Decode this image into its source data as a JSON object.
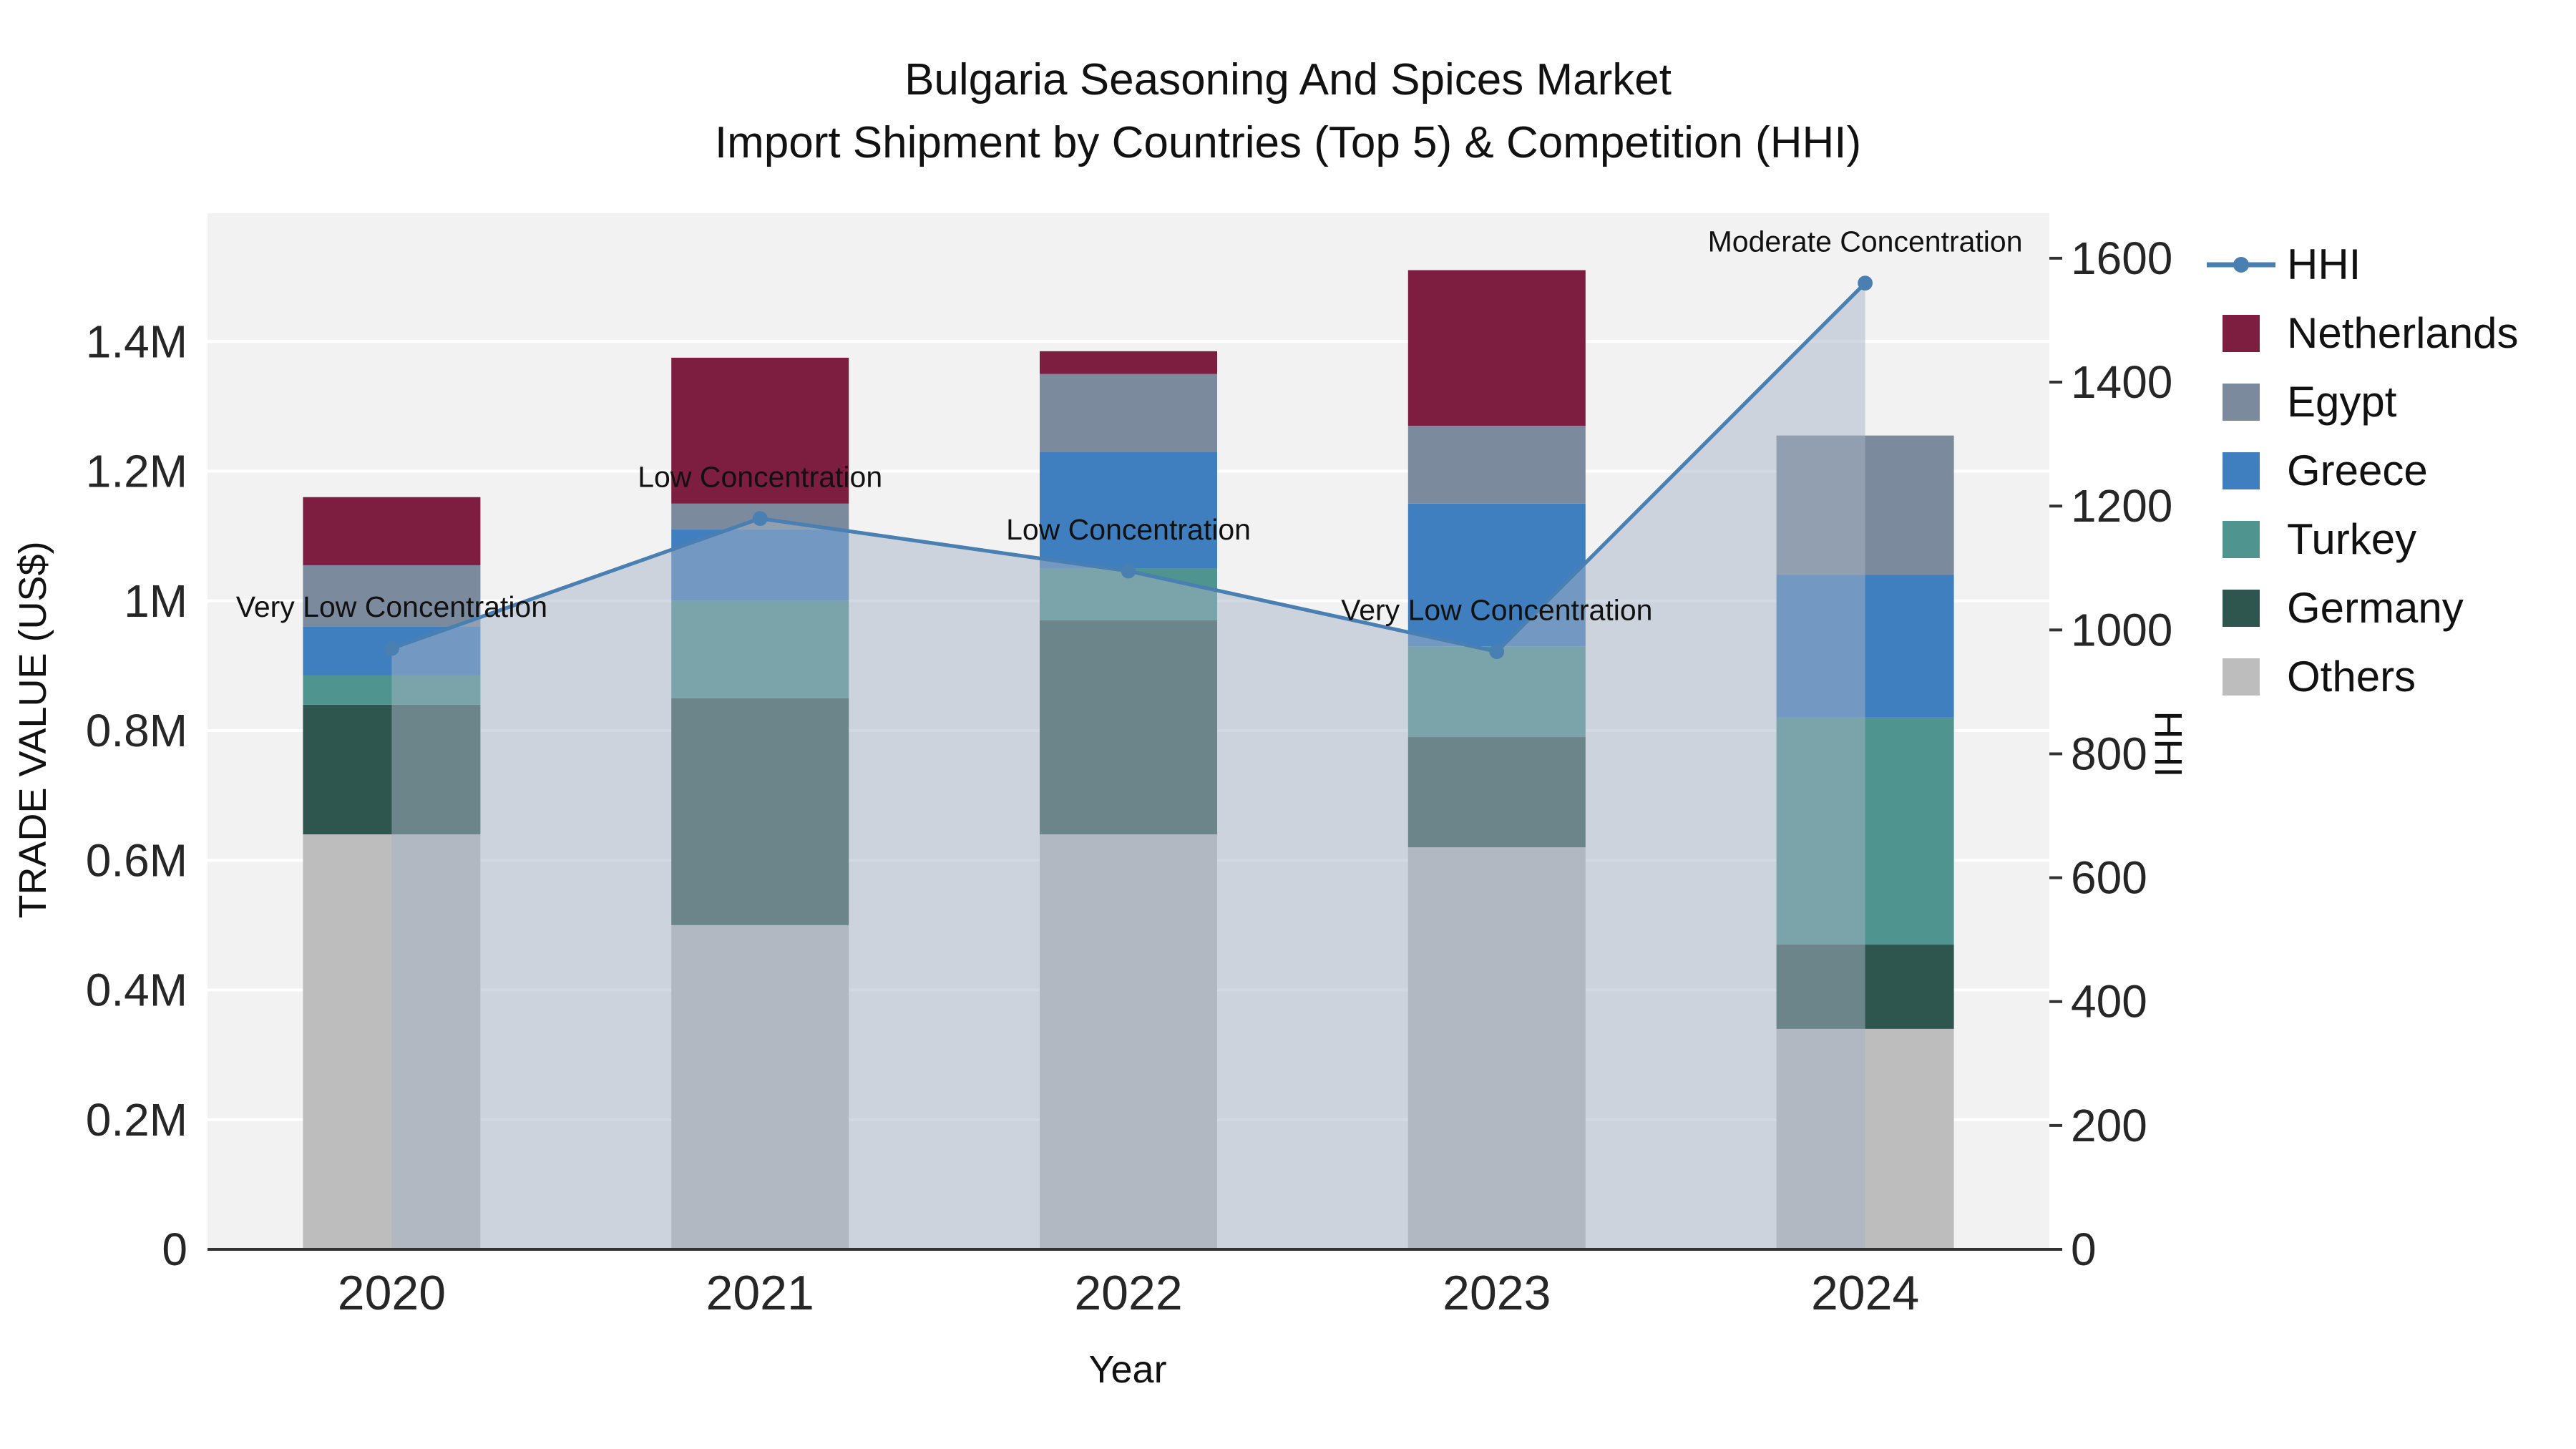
{
  "chart_data": {
    "type": "bar+line",
    "title_lines": [
      "Bulgaria Seasoning And Spices Market",
      "Import Shipment by Countries (Top 5) & Competition (HHI)"
    ],
    "xlabel": "Year",
    "ylabel_left": "TRADE VALUE (US$)",
    "ylabel_right": "HHI",
    "categories": [
      "2020",
      "2021",
      "2022",
      "2023",
      "2024"
    ],
    "bar_series": [
      {
        "name": "Others",
        "color": "#bdbdbd",
        "values": [
          640000,
          500000,
          640000,
          620000,
          340000
        ]
      },
      {
        "name": "Germany",
        "color": "#2e564f",
        "values": [
          200000,
          350000,
          330000,
          170000,
          130000
        ]
      },
      {
        "name": "Turkey",
        "color": "#4f948f",
        "values": [
          45000,
          150000,
          80000,
          140000,
          350000
        ]
      },
      {
        "name": "Greece",
        "color": "#3f7fbf",
        "values": [
          75000,
          110000,
          180000,
          220000,
          220000
        ]
      },
      {
        "name": "Egypt",
        "color": "#7b8b9d",
        "values": [
          95000,
          40000,
          120000,
          120000,
          215000
        ]
      },
      {
        "name": "Netherlands",
        "color": "#7d1d3f",
        "values": [
          105000,
          225000,
          35000,
          240000,
          0
        ]
      }
    ],
    "line_series": {
      "name": "HHI",
      "color": "#4a7fb2",
      "area_fill": "rgba(168,180,198,0.5)",
      "values": [
        970,
        1180,
        1095,
        965,
        1560
      ]
    },
    "annotations": [
      "Very Low Concentration",
      "Low Concentration",
      "Low Concentration",
      "Very Low Concentration",
      "Moderate Concentration"
    ],
    "yaxis_left": {
      "min": 0,
      "max": 1600000,
      "ticks": [
        {
          "value": 0,
          "label": "0"
        },
        {
          "value": 200000,
          "label": "0.2M"
        },
        {
          "value": 400000,
          "label": "0.4M"
        },
        {
          "value": 600000,
          "label": "0.6M"
        },
        {
          "value": 800000,
          "label": "0.8M"
        },
        {
          "value": 1000000,
          "label": "1M"
        },
        {
          "value": 1200000,
          "label": "1.2M"
        },
        {
          "value": 1400000,
          "label": "1.4M"
        },
        {
          "value": 1600000,
          "label": ""
        }
      ]
    },
    "yaxis_right": {
      "min": 0,
      "max": 1675,
      "ticks": [
        0,
        200,
        400,
        600,
        800,
        1000,
        1200,
        1400,
        1600
      ]
    },
    "legend": [
      {
        "label": "HHI",
        "type": "line",
        "color": "#4a7fb2"
      },
      {
        "label": "Netherlands",
        "type": "square",
        "color": "#7d1d3f"
      },
      {
        "label": "Egypt",
        "type": "square",
        "color": "#7b8b9d"
      },
      {
        "label": "Greece",
        "type": "square",
        "color": "#3f7fbf"
      },
      {
        "label": "Turkey",
        "type": "square",
        "color": "#4f948f"
      },
      {
        "label": "Germany",
        "type": "square",
        "color": "#2e564f"
      },
      {
        "label": "Others",
        "type": "square",
        "color": "#bdbdbd"
      }
    ],
    "colors": {
      "plot_bg": "#f2f2f2",
      "grid": "#ffffff",
      "axis_line": "#333333",
      "tick_text": "#262626",
      "annotation_text": "#111111"
    }
  }
}
